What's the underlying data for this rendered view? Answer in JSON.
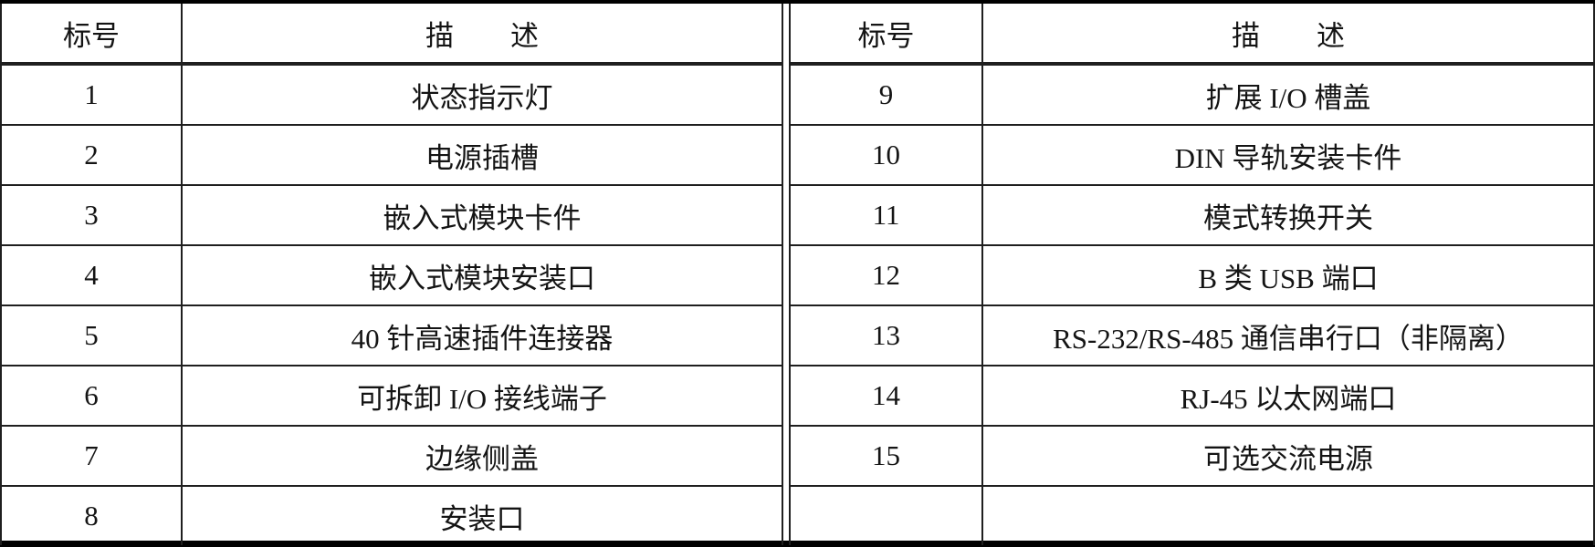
{
  "colors": {
    "background": "#ffffff",
    "border": "#000000",
    "text": "#141414"
  },
  "left_table": {
    "header": {
      "id": "标号",
      "desc": "描　　述"
    },
    "rows": [
      {
        "id": "1",
        "desc": "状态指示灯"
      },
      {
        "id": "2",
        "desc": "电源插槽"
      },
      {
        "id": "3",
        "desc": "嵌入式模块卡件"
      },
      {
        "id": "4",
        "desc": "嵌入式模块安装口"
      },
      {
        "id": "5",
        "desc": "40 针高速插件连接器"
      },
      {
        "id": "6",
        "desc": "可拆卸 I/O 接线端子"
      },
      {
        "id": "7",
        "desc": "边缘侧盖"
      },
      {
        "id": "8",
        "desc": "安装口"
      }
    ]
  },
  "right_table": {
    "header": {
      "id": "标号",
      "desc": "描　　述"
    },
    "rows": [
      {
        "id": "9",
        "desc": "扩展 I/O 槽盖"
      },
      {
        "id": "10",
        "desc": "DIN 导轨安装卡件"
      },
      {
        "id": "11",
        "desc": "模式转换开关"
      },
      {
        "id": "12",
        "desc": "B 类 USB 端口"
      },
      {
        "id": "13",
        "desc": "RS-232/RS-485 通信串行口（非隔离）"
      },
      {
        "id": "14",
        "desc": "RJ-45 以太网端口"
      },
      {
        "id": "15",
        "desc": "可选交流电源"
      },
      {
        "id": "",
        "desc": ""
      }
    ]
  }
}
